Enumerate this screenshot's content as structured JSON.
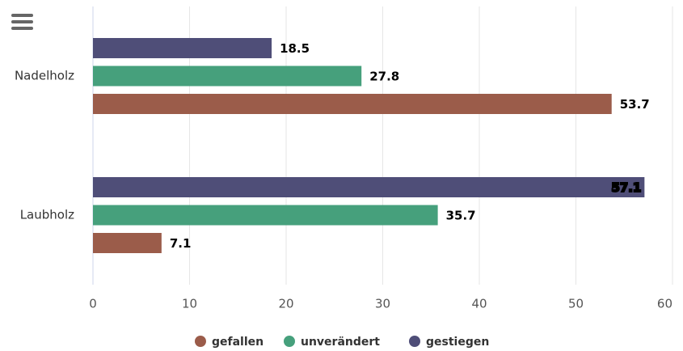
{
  "chart_data": {
    "type": "bar",
    "orientation": "horizontal",
    "categories": [
      "Nadelholz",
      "Laubholz"
    ],
    "series": [
      {
        "name": "gefallen",
        "color": "#9b5c4a",
        "values": [
          53.7,
          7.1
        ]
      },
      {
        "name": "unverändert",
        "color": "#46a07c",
        "values": [
          27.8,
          35.7
        ]
      },
      {
        "name": "gestiegen",
        "color": "#4f4e78",
        "values": [
          18.5,
          57.1
        ]
      }
    ],
    "xlim": [
      0,
      60
    ],
    "xticks": [
      0,
      10,
      20,
      30,
      40,
      50,
      60
    ],
    "grid": true,
    "legend": "bottom"
  }
}
